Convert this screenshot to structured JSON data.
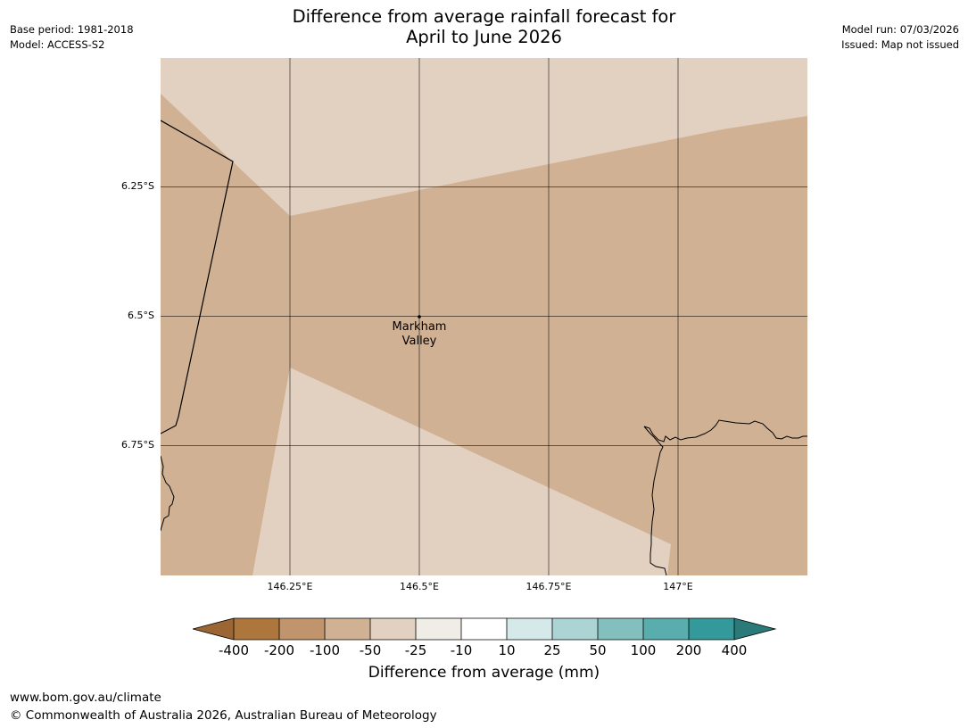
{
  "header": {
    "title_line1": "Difference from average rainfall forecast for",
    "title_line2": "April to June 2026",
    "base_period": "Base period: 1981-2018",
    "model": "Model: ACCESS-S2",
    "model_run": "Model run: 07/03/2026",
    "issued": "Issued: Map not issued"
  },
  "map": {
    "latitude_labels": [
      "6.25°S",
      "6.5°S",
      "6.75°S"
    ],
    "longitude_labels": [
      "146.25°E",
      "146.5°E",
      "146.75°E",
      "147°E"
    ],
    "place_name_line1": "Markham",
    "place_name_line2": "Valley"
  },
  "legend": {
    "ticks": [
      "-400",
      "-200",
      "-100",
      "-50",
      "-25",
      "-10",
      "10",
      "25",
      "50",
      "100",
      "200",
      "400"
    ],
    "colors": [
      "#9b6534",
      "#ad763d",
      "#c0946c",
      "#d0b194",
      "#e2d0c0",
      "#f0ece6",
      "#ffffff",
      "#d6e9ea",
      "#acd4d4",
      "#83bfbc",
      "#5aadad",
      "#33999a",
      "#2b7979"
    ],
    "title": "Difference from average (mm)"
  },
  "footer": {
    "url": "www.bom.gov.au/climate",
    "copyright": "© Commonwealth of Australia 2026, Australian Bureau of Meteorology"
  }
}
